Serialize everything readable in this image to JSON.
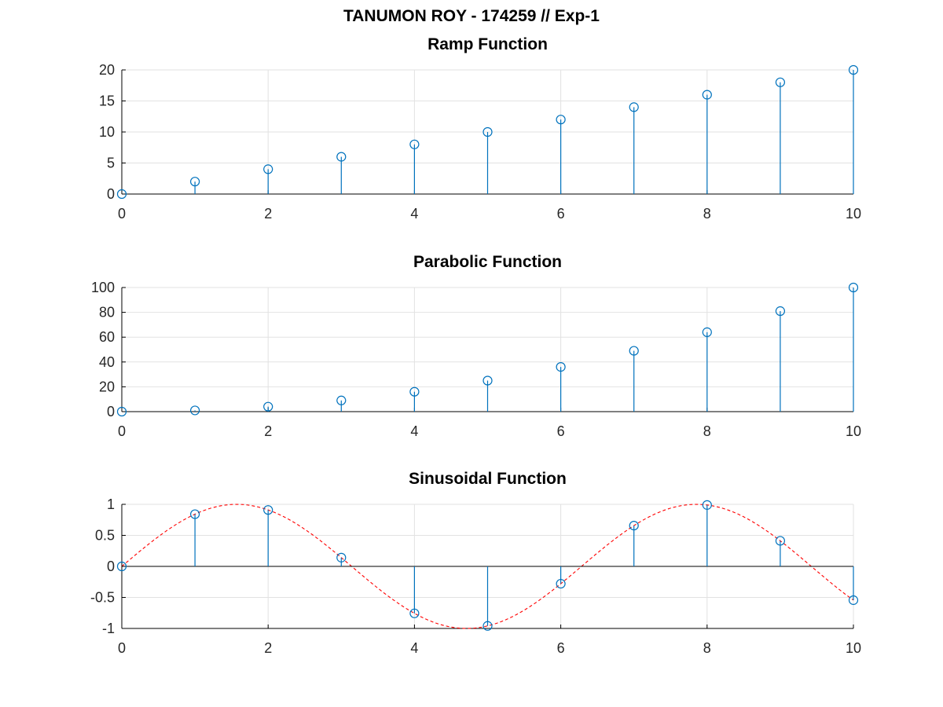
{
  "figure": {
    "title": "TANUMON ROY - 174259 // Exp-1"
  },
  "colors": {
    "stem": "#0072bd",
    "reference_curve": "#ff0000",
    "axis": "#000000",
    "grid": "#e2e2e2"
  },
  "chart_data": [
    {
      "type": "stem",
      "title": "Ramp Function",
      "xlabel": "",
      "ylabel": "",
      "x": [
        0,
        1,
        2,
        3,
        4,
        5,
        6,
        7,
        8,
        9,
        10
      ],
      "series": [
        {
          "values": [
            0,
            2,
            4,
            6,
            8,
            10,
            12,
            14,
            16,
            18,
            20
          ],
          "style": "stem",
          "marker": "circle"
        }
      ],
      "xlim": [
        0,
        10
      ],
      "ylim": [
        0,
        20
      ],
      "xticks": [
        0,
        2,
        4,
        6,
        8,
        10
      ],
      "yticks": [
        0,
        5,
        10,
        15,
        20
      ],
      "grid": true
    },
    {
      "type": "stem",
      "title": "Parabolic Function",
      "xlabel": "",
      "ylabel": "",
      "x": [
        0,
        1,
        2,
        3,
        4,
        5,
        6,
        7,
        8,
        9,
        10
      ],
      "series": [
        {
          "values": [
            0,
            1,
            4,
            9,
            16,
            25,
            36,
            49,
            64,
            81,
            100
          ],
          "style": "stem",
          "marker": "circle"
        }
      ],
      "xlim": [
        0,
        10
      ],
      "ylim": [
        0,
        100
      ],
      "xticks": [
        0,
        2,
        4,
        6,
        8,
        10
      ],
      "yticks": [
        0,
        20,
        40,
        60,
        80,
        100
      ],
      "grid": true
    },
    {
      "type": "stem",
      "title": "Sinusoidal Function",
      "xlabel": "",
      "ylabel": "",
      "x": [
        0,
        1,
        2,
        3,
        4,
        5,
        6,
        7,
        8,
        9,
        10
      ],
      "series": [
        {
          "values": [
            0,
            0.841,
            0.909,
            0.141,
            -0.757,
            -0.959,
            -0.279,
            0.657,
            0.989,
            0.412,
            -0.544
          ],
          "style": "stem",
          "marker": "circle"
        },
        {
          "function": "sin(x)",
          "style": "dashed-line",
          "color": "#ff0000"
        }
      ],
      "xlim": [
        0,
        10
      ],
      "ylim": [
        -1,
        1
      ],
      "xticks": [
        0,
        2,
        4,
        6,
        8,
        10
      ],
      "yticks": [
        -1,
        -0.5,
        0,
        0.5,
        1
      ],
      "grid": true
    }
  ]
}
